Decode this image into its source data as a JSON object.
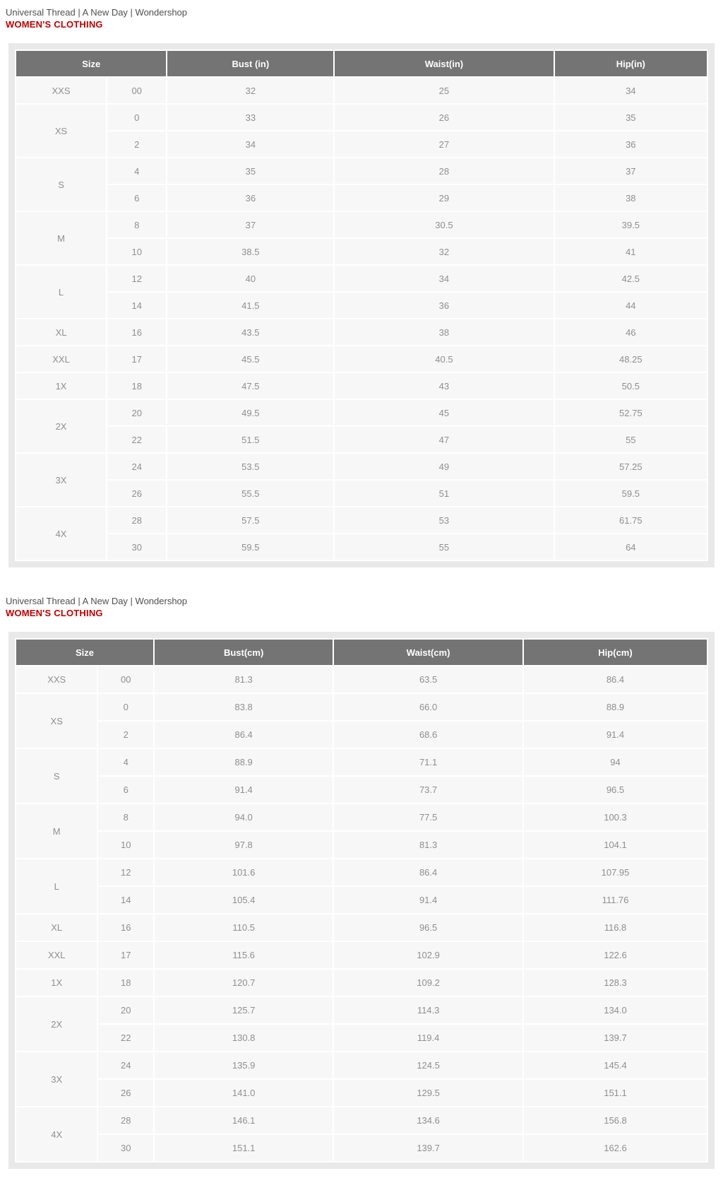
{
  "colors": {
    "accent_red": "#c00000",
    "table_header_bg": "#747474",
    "table_header_text": "#ffffff",
    "cell_bg": "#f7f7f7",
    "wrapper_bg": "#e9e9e9",
    "cell_text": "#8f8f8f",
    "brand_text": "#4f4f4f"
  },
  "sections": [
    {
      "brand_line": "Universal Thread | A New Day | Wondershop",
      "category_title": "WOMEN'S CLOTHING",
      "table": {
        "unit": "inches",
        "headers": {
          "size": "Size",
          "bust": "Bust (in)",
          "waist": "Waist(in)",
          "hip": "Hip(in)"
        },
        "groups": [
          {
            "size_label": "XXS",
            "rows": [
              [
                "00",
                "32",
                "25",
                "34"
              ]
            ]
          },
          {
            "size_label": "XS",
            "rows": [
              [
                "0",
                "33",
                "26",
                "35"
              ],
              [
                "2",
                "34",
                "27",
                "36"
              ]
            ]
          },
          {
            "size_label": "S",
            "rows": [
              [
                "4",
                "35",
                "28",
                "37"
              ],
              [
                "6",
                "36",
                "29",
                "38"
              ]
            ]
          },
          {
            "size_label": "M",
            "rows": [
              [
                "8",
                "37",
                "30.5",
                "39.5"
              ],
              [
                "10",
                "38.5",
                "32",
                "41"
              ]
            ]
          },
          {
            "size_label": "L",
            "rows": [
              [
                "12",
                "40",
                "34",
                "42.5"
              ],
              [
                "14",
                "41.5",
                "36",
                "44"
              ]
            ]
          },
          {
            "size_label": "XL",
            "rows": [
              [
                "16",
                "43.5",
                "38",
                "46"
              ]
            ]
          },
          {
            "size_label": "XXL",
            "rows": [
              [
                "17",
                "45.5",
                "40.5",
                "48.25"
              ]
            ]
          },
          {
            "size_label": "1X",
            "rows": [
              [
                "18",
                "47.5",
                "43",
                "50.5"
              ]
            ]
          },
          {
            "size_label": "2X",
            "rows": [
              [
                "20",
                "49.5",
                "45",
                "52.75"
              ],
              [
                "22",
                "51.5",
                "47",
                "55"
              ]
            ]
          },
          {
            "size_label": "3X",
            "rows": [
              [
                "24",
                "53.5",
                "49",
                "57.25"
              ],
              [
                "26",
                "55.5",
                "51",
                "59.5"
              ]
            ]
          },
          {
            "size_label": "4X",
            "rows": [
              [
                "28",
                "57.5",
                "53",
                "61.75"
              ],
              [
                "30",
                "59.5",
                "55",
                "64"
              ]
            ]
          }
        ]
      }
    },
    {
      "brand_line": "Universal Thread | A New Day | Wondershop",
      "category_title": "WOMEN'S CLOTHING",
      "table": {
        "unit": "centimeters",
        "headers": {
          "size": "Size",
          "bust": "Bust(cm)",
          "waist": "Waist(cm)",
          "hip": "Hip(cm)"
        },
        "groups": [
          {
            "size_label": "XXS",
            "rows": [
              [
                "00",
                "81.3",
                "63.5",
                "86.4"
              ]
            ]
          },
          {
            "size_label": "XS",
            "rows": [
              [
                "0",
                "83.8",
                "66.0",
                "88.9"
              ],
              [
                "2",
                "86.4",
                "68.6",
                "91.4"
              ]
            ]
          },
          {
            "size_label": "S",
            "rows": [
              [
                "4",
                "88.9",
                "71.1",
                "94"
              ],
              [
                "6",
                "91.4",
                "73.7",
                "96.5"
              ]
            ]
          },
          {
            "size_label": "M",
            "rows": [
              [
                "8",
                "94.0",
                "77.5",
                "100.3"
              ],
              [
                "10",
                "97.8",
                "81.3",
                "104.1"
              ]
            ]
          },
          {
            "size_label": "L",
            "rows": [
              [
                "12",
                "101.6",
                "86.4",
                "107.95"
              ],
              [
                "14",
                "105.4",
                "91.4",
                "111.76"
              ]
            ]
          },
          {
            "size_label": "XL",
            "rows": [
              [
                "16",
                "110.5",
                "96.5",
                "116.8"
              ]
            ]
          },
          {
            "size_label": "XXL",
            "rows": [
              [
                "17",
                "115.6",
                "102.9",
                "122.6"
              ]
            ]
          },
          {
            "size_label": "1X",
            "rows": [
              [
                "18",
                "120.7",
                "109.2",
                "128.3"
              ]
            ]
          },
          {
            "size_label": "2X",
            "rows": [
              [
                "20",
                "125.7",
                "114.3",
                "134.0"
              ],
              [
                "22",
                "130.8",
                "119.4",
                "139.7"
              ]
            ]
          },
          {
            "size_label": "3X",
            "rows": [
              [
                "24",
                "135.9",
                "124.5",
                "145.4"
              ],
              [
                "26",
                "141.0",
                "129.5",
                "151.1"
              ]
            ]
          },
          {
            "size_label": "4X",
            "rows": [
              [
                "28",
                "146.1",
                "134.6",
                "156.8"
              ],
              [
                "30",
                "151.1",
                "139.7",
                "162.6"
              ]
            ]
          }
        ]
      }
    }
  ]
}
